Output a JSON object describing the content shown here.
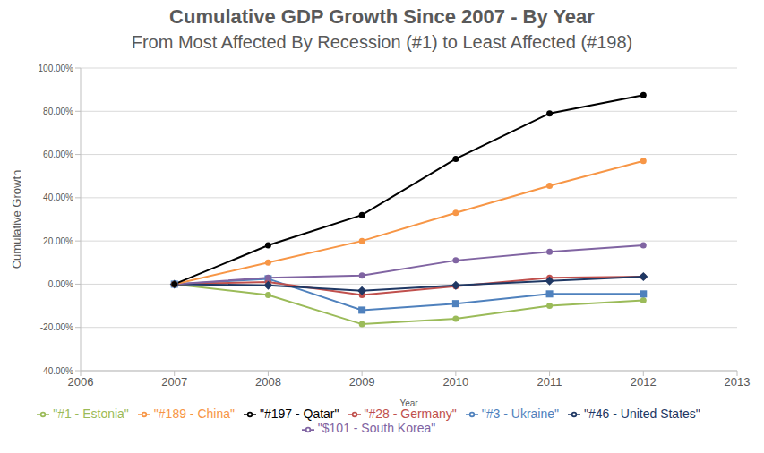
{
  "chart_data": {
    "type": "line",
    "title": "Cumulative GDP Growth Since 2007 - By Year",
    "subtitle": "From Most Affected By Recession (#1) to Least Affected (#198)",
    "x_label": "Year",
    "y_label": "Cumulative Growth",
    "x": [
      2007,
      2008,
      2009,
      2010,
      2011,
      2012
    ],
    "xlim": [
      2006,
      2013
    ],
    "xticks": [
      2006,
      2007,
      2008,
      2009,
      2010,
      2011,
      2012,
      2013
    ],
    "ylim": [
      -40,
      100
    ],
    "yticks": [
      {
        "value": -40,
        "label": "-40.00%"
      },
      {
        "value": -20,
        "label": "-20.00%"
      },
      {
        "value": 0,
        "label": "0.00%"
      },
      {
        "value": 20,
        "label": "20.00%"
      },
      {
        "value": 40,
        "label": "40.00%"
      },
      {
        "value": 60,
        "label": "60.00%"
      },
      {
        "value": 80,
        "label": "80.00%"
      },
      {
        "value": 100,
        "label": "100.00%"
      }
    ],
    "grid": true,
    "legend": "bottom",
    "series": [
      {
        "name": "\"#1 - Estonia\"",
        "color": "#9BBB59",
        "marker": "circle",
        "values": [
          0,
          -5,
          -18.5,
          -16,
          -10,
          -7.5
        ]
      },
      {
        "name": "\"#3 - Ukraine\"",
        "color": "#4F81BD",
        "marker": "square",
        "values": [
          0,
          2.5,
          -12,
          -9,
          -4.5,
          -4.5
        ]
      },
      {
        "name": "\"#28 - Germany\"",
        "color": "#C0504D",
        "marker": "circle",
        "values": [
          0,
          1,
          -5,
          -1,
          3,
          3.5
        ]
      },
      {
        "name": "\"#46 - United States\"",
        "color": "#1F3864",
        "marker": "diamond",
        "values": [
          0,
          -0.5,
          -3,
          -0.5,
          1.5,
          3.5
        ]
      },
      {
        "name": "\"$101 - South Korea\"",
        "color": "#8064A2",
        "marker": "circle",
        "values": [
          0,
          3,
          4,
          11,
          15,
          18
        ]
      },
      {
        "name": "\"#189 - China\"",
        "color": "#F79646",
        "marker": "circle",
        "values": [
          0,
          10,
          20,
          33,
          45.5,
          57
        ]
      },
      {
        "name": "\"#197 - Qatar\"",
        "color": "#000000",
        "marker": "circle",
        "values": [
          0,
          18,
          32,
          58,
          79,
          87.5
        ]
      }
    ]
  }
}
